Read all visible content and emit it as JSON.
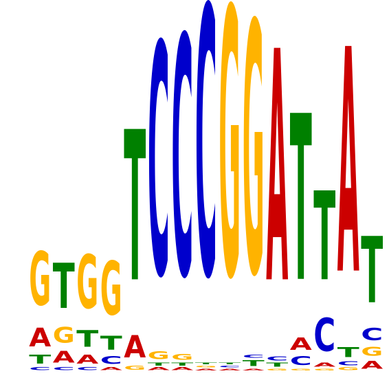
{
  "logo": {
    "colors": {
      "A": "#cc0000",
      "C": "#0000cc",
      "G": "#ffb300",
      "T": "#008000"
    },
    "positions": [
      {
        "index": 1,
        "stack": [
          {
            "base": "C",
            "bits": 0.03
          },
          {
            "base": "T",
            "bits": 0.09
          },
          {
            "base": "A",
            "bits": 0.19
          },
          {
            "base": "G",
            "bits": 0.55
          }
        ]
      },
      {
        "index": 2,
        "stack": [
          {
            "base": "C",
            "bits": 0.03
          },
          {
            "base": "A",
            "bits": 0.12
          },
          {
            "base": "G",
            "bits": 0.16
          },
          {
            "base": "T",
            "bits": 0.46
          }
        ]
      },
      {
        "index": 3,
        "stack": [
          {
            "base": "C",
            "bits": 0.03
          },
          {
            "base": "A",
            "bits": 0.09
          },
          {
            "base": "T",
            "bits": 0.17
          },
          {
            "base": "G",
            "bits": 0.55
          }
        ]
      },
      {
        "index": 4,
        "stack": [
          {
            "base": "A",
            "bits": 0.03
          },
          {
            "base": "C",
            "bits": 0.08
          },
          {
            "base": "T",
            "bits": 0.14
          },
          {
            "base": "G",
            "bits": 0.55
          }
        ]
      },
      {
        "index": 5,
        "stack": [
          {
            "base": "G",
            "bits": 0.04
          },
          {
            "base": "A",
            "bits": 0.23
          },
          {
            "base": "T",
            "bits": 1.54
          }
        ]
      },
      {
        "index": 6,
        "stack": [
          {
            "base": "A",
            "bits": 0.03
          },
          {
            "base": "T",
            "bits": 0.03
          },
          {
            "base": "G",
            "bits": 0.08
          },
          {
            "base": "C",
            "bits": 2.37
          }
        ]
      },
      {
        "index": 7,
        "stack": [
          {
            "base": "A",
            "bits": 0.03
          },
          {
            "base": "T",
            "bits": 0.03
          },
          {
            "base": "G",
            "bits": 0.06
          },
          {
            "base": "C",
            "bits": 2.45
          }
        ]
      },
      {
        "index": 8,
        "stack": [
          {
            "base": "A",
            "bits": 0.02
          },
          {
            "base": "G",
            "bits": 0.02
          },
          {
            "base": "T",
            "bits": 0.02
          },
          {
            "base": "C",
            "bits": 2.75
          }
        ]
      },
      {
        "index": 9,
        "stack": [
          {
            "base": "A",
            "bits": 0.02
          },
          {
            "base": "C",
            "bits": 0.02
          },
          {
            "base": "T",
            "bits": 0.02
          },
          {
            "base": "G",
            "bits": 2.74
          }
        ]
      },
      {
        "index": 10,
        "stack": [
          {
            "base": "A",
            "bits": 0.02
          },
          {
            "base": "T",
            "bits": 0.06
          },
          {
            "base": "C",
            "bits": 0.03
          },
          {
            "base": "G",
            "bits": 2.57
          }
        ]
      },
      {
        "index": 11,
        "stack": [
          {
            "base": "G",
            "bits": 0.02
          },
          {
            "base": "T",
            "bits": 0.04
          },
          {
            "base": "C",
            "bits": 0.04
          },
          {
            "base": "A",
            "bits": 2.37
          }
        ]
      },
      {
        "index": 12,
        "stack": [
          {
            "base": "G",
            "bits": 0.02
          },
          {
            "base": "C",
            "bits": 0.09
          },
          {
            "base": "A",
            "bits": 0.13
          },
          {
            "base": "T",
            "bits": 1.7
          }
        ]
      },
      {
        "index": 13,
        "stack": [
          {
            "base": "G",
            "bits": 0.02
          },
          {
            "base": "A",
            "bits": 0.04
          },
          {
            "base": "C",
            "bits": 0.34
          },
          {
            "base": "T",
            "bits": 0.91
          }
        ]
      },
      {
        "index": 14,
        "stack": [
          {
            "base": "G",
            "bits": 0.03
          },
          {
            "base": "C",
            "bits": 0.04
          },
          {
            "base": "T",
            "bits": 0.1
          },
          {
            "base": "A",
            "bits": 2.3
          }
        ]
      },
      {
        "index": 15,
        "stack": [
          {
            "base": "A",
            "bits": 0.08
          },
          {
            "base": "G",
            "bits": 0.09
          },
          {
            "base": "C",
            "bits": 0.13
          },
          {
            "base": "T",
            "bits": 0.68
          }
        ]
      }
    ]
  }
}
